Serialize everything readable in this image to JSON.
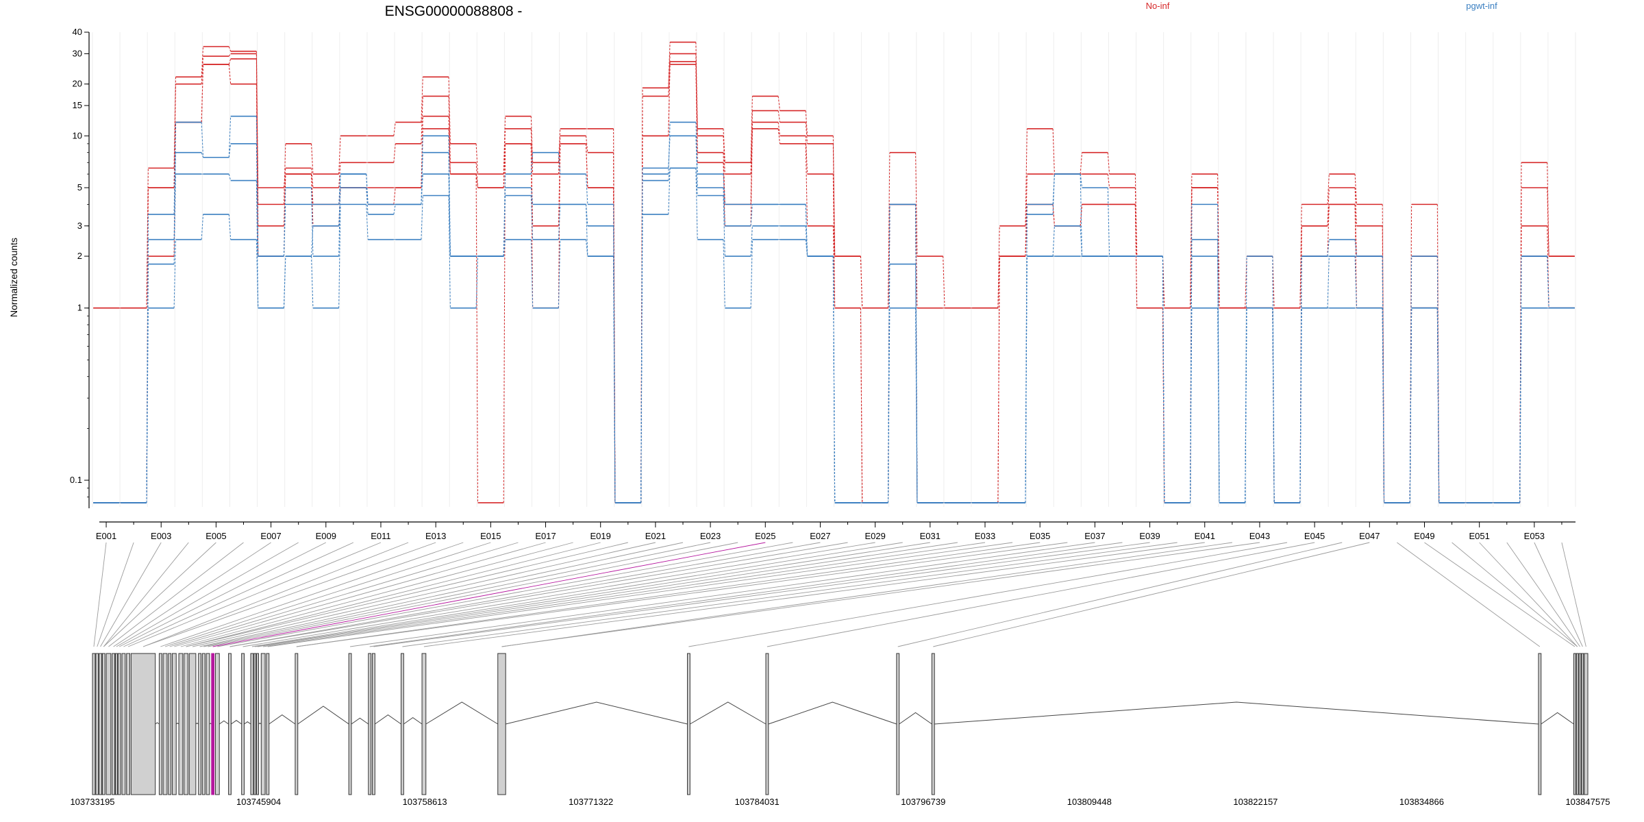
{
  "chart_data": {
    "type": "line",
    "title": "ENSG00000088808 -",
    "ylabel": "Normalized counts",
    "y_scale": "log",
    "ylim": [
      0.07,
      40
    ],
    "y_ticks": [
      0.1,
      1,
      2,
      3,
      5,
      10,
      15,
      20,
      30,
      40
    ],
    "y_tick_labels": [
      "0.1",
      "1",
      "2",
      "3",
      "5",
      "10",
      "15",
      "20",
      "30",
      "40"
    ],
    "categories": [
      "E001",
      "E002",
      "E003",
      "E004",
      "E005",
      "E006",
      "E007",
      "E008",
      "E009",
      "E010",
      "E011",
      "E012",
      "E013",
      "E014",
      "E015",
      "E016",
      "E017",
      "E018",
      "E019",
      "E020",
      "E021",
      "E022",
      "E023",
      "E024",
      "E025",
      "E026",
      "E027",
      "E028",
      "E029",
      "E030",
      "E031",
      "E032",
      "E033",
      "E034",
      "E035",
      "E036",
      "E037",
      "E038",
      "E039",
      "E040",
      "E041",
      "E042",
      "E043",
      "E044",
      "E045",
      "E046",
      "E047",
      "E048",
      "E049",
      "E050",
      "E051",
      "E052",
      "E053",
      "E054"
    ],
    "x_tick_labels": [
      "E001",
      "E003",
      "E005",
      "E007",
      "E009",
      "E011",
      "E013",
      "E015",
      "E017",
      "E019",
      "E021",
      "E023",
      "E025",
      "E027",
      "E029",
      "E031",
      "E033",
      "E035",
      "E037",
      "E039",
      "E041",
      "E043",
      "E045",
      "E047",
      "E049",
      "E051",
      "E053"
    ],
    "legend": [
      {
        "name": "No-inf",
        "color": "#d62728"
      },
      {
        "name": "pgwt-inf",
        "color": "#3a7fc1"
      }
    ],
    "series": [
      {
        "name": "No-inf",
        "group": "No-inf",
        "values": [
          1,
          1,
          6.5,
          22,
          33,
          31,
          4,
          9,
          6,
          10,
          10,
          12,
          22,
          9,
          6,
          13,
          7,
          11,
          11,
          0,
          19,
          35,
          11,
          7,
          17,
          14,
          10,
          2,
          1,
          8,
          2,
          1,
          1,
          3,
          11,
          6,
          8,
          6,
          2,
          1,
          6,
          1,
          2,
          1,
          4,
          6,
          4,
          0,
          4,
          0,
          0,
          0,
          7,
          2
        ]
      },
      {
        "name": "No-inf",
        "group": "No-inf",
        "values": [
          1,
          1,
          5,
          20,
          29,
          30,
          5,
          6.5,
          5,
          7,
          7,
          9,
          17,
          7,
          5,
          11,
          6,
          10,
          8,
          0,
          17,
          30,
          10,
          6,
          14,
          12,
          9,
          2,
          1,
          4,
          1,
          1,
          1,
          2,
          6,
          6,
          6,
          5,
          2,
          1,
          5,
          1,
          1,
          1,
          3,
          5,
          3,
          0,
          2,
          0,
          0,
          0,
          5,
          2
        ]
      },
      {
        "name": "No-inf",
        "group": "No-inf",
        "values": [
          0,
          0,
          5,
          12,
          26,
          28,
          3,
          6,
          4,
          5,
          5,
          5,
          13,
          6,
          5,
          9,
          3,
          9,
          5,
          0,
          10,
          27,
          8,
          4,
          12,
          10,
          6,
          1,
          0,
          4,
          0,
          0,
          0,
          2,
          4,
          3,
          4,
          4,
          1,
          0,
          5,
          1,
          1,
          0,
          3,
          4,
          2,
          0,
          1,
          0,
          0,
          0,
          3,
          1
        ]
      },
      {
        "name": "No-inf",
        "group": "No-inf",
        "values": [
          0,
          0,
          2,
          12,
          26,
          20,
          2,
          6,
          3,
          5,
          4,
          5,
          11,
          6,
          0,
          9,
          1,
          9,
          5,
          0,
          10,
          26,
          7,
          3,
          11,
          9,
          3,
          1,
          0,
          4,
          0,
          0,
          0,
          2,
          4,
          3,
          4,
          4,
          1,
          0,
          5,
          1,
          1,
          0,
          2,
          4,
          1,
          0,
          1,
          0,
          0,
          0,
          2,
          1
        ]
      },
      {
        "name": "pgwt-inf",
        "group": "pgwt-inf",
        "values": [
          0,
          0,
          3.5,
          12,
          7.5,
          13,
          2,
          4,
          4,
          6,
          4,
          4,
          10,
          2,
          2,
          6,
          8,
          6,
          4,
          0,
          6,
          12,
          6,
          4,
          4,
          4,
          2,
          0,
          0,
          4,
          0,
          0,
          0,
          0,
          4,
          6,
          5,
          2,
          2,
          0,
          4,
          0,
          2,
          0,
          2,
          2,
          2,
          0,
          2,
          0,
          0,
          0,
          2,
          1
        ]
      },
      {
        "name": "pgwt-inf",
        "group": "pgwt-inf",
        "values": [
          0,
          0,
          2.5,
          8,
          7.5,
          9,
          2,
          5,
          2,
          6,
          4,
          4,
          8,
          2,
          2,
          5,
          4,
          4,
          3,
          0,
          6.5,
          10,
          5,
          3,
          4,
          4,
          2,
          0,
          0,
          4,
          0,
          0,
          0,
          0,
          3.5,
          6,
          2,
          2,
          2,
          0,
          2.5,
          0,
          1,
          0,
          2,
          2.5,
          2,
          0,
          1,
          0,
          0,
          0,
          2,
          1
        ]
      },
      {
        "name": "pgwt-inf",
        "group": "pgwt-inf",
        "values": [
          0,
          0,
          1.8,
          6,
          6,
          5.5,
          1,
          2,
          3,
          5,
          3.5,
          4,
          6,
          2,
          2,
          4.5,
          2.5,
          4,
          2,
          0,
          5.5,
          6.5,
          4.5,
          2,
          3,
          3,
          2,
          0,
          0,
          1.8,
          0,
          0,
          0,
          0,
          2,
          3,
          2,
          2,
          2,
          0,
          2,
          0,
          1,
          0,
          1,
          2,
          1,
          0,
          1,
          0,
          0,
          0,
          1,
          1
        ]
      },
      {
        "name": "pgwt-inf",
        "group": "pgwt-inf",
        "values": [
          0,
          0,
          1,
          2.5,
          3.5,
          2.5,
          1,
          2,
          1,
          4,
          2.5,
          2.5,
          4.5,
          1,
          2,
          2.5,
          1,
          2.5,
          2,
          0,
          3.5,
          6.5,
          2.5,
          1,
          2.5,
          2.5,
          2,
          0,
          0,
          1,
          0,
          0,
          0,
          0,
          2,
          2,
          2,
          2,
          2,
          0,
          1,
          0,
          1,
          0,
          1,
          1,
          1,
          0,
          1,
          0,
          0,
          0,
          1,
          1
        ]
      }
    ],
    "genomic_axis": {
      "tick_labels": [
        "103733195",
        "103745904",
        "103758613",
        "103771322",
        "103784031",
        "103796739",
        "103809448",
        "103822157",
        "103834866",
        "103847575"
      ],
      "start": 103733195,
      "end": 103847575
    },
    "exon_model": {
      "exons": [
        [
          103733195,
          103733400
        ],
        [
          103733450,
          103733650
        ],
        [
          103733700,
          103733900
        ],
        [
          103733950,
          103734150
        ],
        [
          103734250,
          103734600
        ],
        [
          103734700,
          103734900
        ],
        [
          103734950,
          103735100
        ],
        [
          103735150,
          103735350
        ],
        [
          103735450,
          103735700
        ],
        [
          103735800,
          103736050
        ],
        [
          103736150,
          103738000
        ],
        [
          103738300,
          103738500
        ],
        [
          103738600,
          103738900
        ],
        [
          103739000,
          103739200
        ],
        [
          103739300,
          103739600
        ],
        [
          103739800,
          103740100
        ],
        [
          103740200,
          103740500
        ],
        [
          103740600,
          103741100
        ],
        [
          103741300,
          103741500
        ],
        [
          103741600,
          103741800
        ],
        [
          103741900,
          103742150
        ],
        [
          103742300,
          103742500
        ],
        [
          103742600,
          103742900
        ],
        [
          103743600,
          103743800
        ],
        [
          103744600,
          103744800
        ],
        [
          103745300,
          103745500
        ],
        [
          103745550,
          103745700
        ],
        [
          103745750,
          103745900
        ],
        [
          103746100,
          103746400
        ],
        [
          103746500,
          103746700
        ],
        [
          103748700,
          103748900
        ],
        [
          103752800,
          103753000
        ],
        [
          103754300,
          103754500
        ],
        [
          103754600,
          103754800
        ],
        [
          103756800,
          103757000
        ],
        [
          103758400,
          103758700
        ],
        [
          103764200,
          103764800
        ],
        [
          103778700,
          103778900
        ],
        [
          103784700,
          103784900
        ],
        [
          103794700,
          103794900
        ],
        [
          103797400,
          103797600
        ],
        [
          103843800,
          103844000
        ],
        [
          103846500,
          103846650
        ],
        [
          103846700,
          103846850
        ],
        [
          103846900,
          103847050
        ],
        [
          103847100,
          103847250
        ],
        [
          103847300,
          103847575
        ]
      ],
      "highlighted_exon": [
        103742300,
        103742500
      ],
      "highlight_color": "#b5179e"
    }
  }
}
